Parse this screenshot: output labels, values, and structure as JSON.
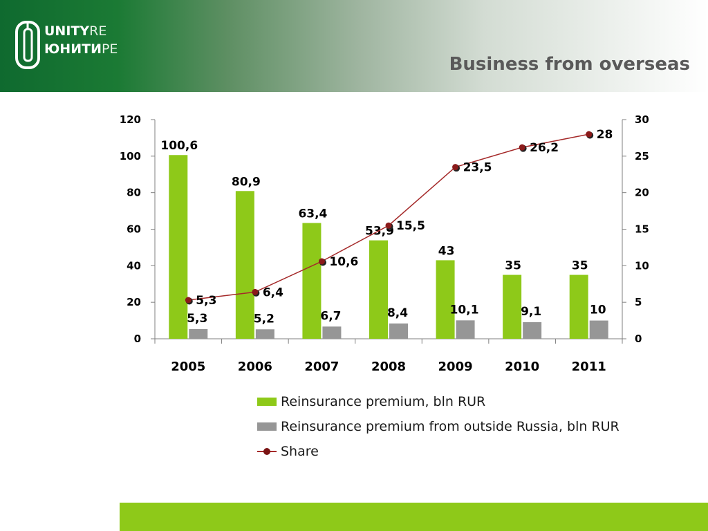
{
  "header": {
    "logo": {
      "line1": "UNITY",
      "line1_accent": "RE",
      "line2": "ЮНИТИ",
      "line2_accent": "РЕ"
    },
    "title": "Business from overseas"
  },
  "colors": {
    "header_green": "#1b7a34",
    "bar_green": "#8ec919",
    "bar_grey": "#969696",
    "line_red": "#a52a2a",
    "footer_green": "#8ec919"
  },
  "chart_data": {
    "type": "bar",
    "categories": [
      "2005",
      "2006",
      "2007",
      "2008",
      "2009",
      "2010",
      "2011"
    ],
    "series": [
      {
        "name": "Reinsurance premium, bln RUR",
        "type": "bar",
        "axis": "left",
        "values": [
          100.6,
          80.9,
          63.4,
          53.9,
          43,
          35,
          35
        ],
        "labels": [
          "100,6",
          "80,9",
          "63,4",
          "53,9",
          "43",
          "35",
          "35"
        ]
      },
      {
        "name": "Reinsurance premium from outside Russia, bln RUR",
        "type": "bar",
        "axis": "left",
        "values": [
          5.3,
          5.2,
          6.7,
          8.4,
          10.1,
          9.1,
          10
        ],
        "labels": [
          "5,3",
          "5,2",
          "6,7",
          "8,4",
          "10,1",
          "9,1",
          "10"
        ]
      },
      {
        "name": "Share",
        "type": "line",
        "axis": "right",
        "values": [
          5.3,
          6.4,
          10.6,
          15.5,
          23.5,
          26.2,
          28
        ],
        "labels": [
          "5,3",
          "6,4",
          "10,6",
          "15,5",
          "23,5",
          "26,2",
          "28"
        ]
      }
    ],
    "y_left": {
      "range": [
        0,
        120
      ],
      "ticks": [
        "0",
        "20",
        "40",
        "60",
        "80",
        "100",
        "120"
      ]
    },
    "y_right": {
      "range": [
        0,
        30
      ],
      "ticks": [
        "0",
        "5",
        "10",
        "15",
        "20",
        "25",
        "30"
      ]
    },
    "grid": false,
    "legend_position": "bottom"
  }
}
